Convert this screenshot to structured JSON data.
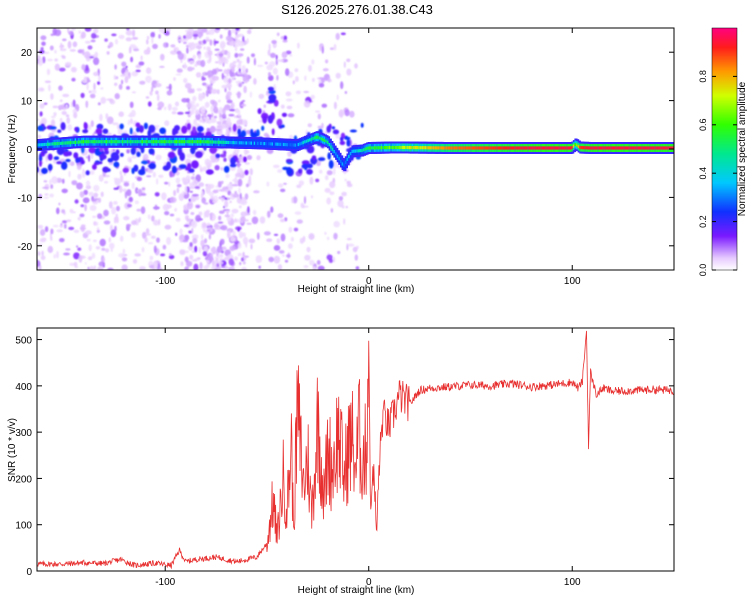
{
  "title": "S126.2025.276.01.38.C43",
  "chart_data": [
    {
      "type": "heatmap",
      "name": "spectrogram",
      "xlabel": "Height of straight line (km)",
      "ylabel": "Frequency (Hz)",
      "xlim": [
        -163,
        150
      ],
      "ylim": [
        -25,
        25
      ],
      "xticks": [
        -100,
        0,
        100
      ],
      "yticks": [
        -20,
        -10,
        0,
        10,
        20
      ],
      "colorbar": {
        "label": "Normalized spectral amplitude",
        "range": [
          0,
          1
        ],
        "ticks": [
          0.0,
          0.2,
          0.4,
          0.6,
          0.8
        ]
      },
      "dominant_frequency_track": {
        "x": [
          -163,
          -140,
          -120,
          -100,
          -80,
          -65,
          -55,
          -45,
          -35,
          -25,
          -20,
          -15,
          -12,
          -8,
          -3,
          0,
          10,
          20,
          40,
          60,
          80,
          100,
          102,
          104,
          110,
          130,
          150
        ],
        "y": [
          0.8,
          1.5,
          1.5,
          1.5,
          1.5,
          1.3,
          1.2,
          1.0,
          0.8,
          2.5,
          1.5,
          -1.5,
          -3.5,
          -0.5,
          -0.3,
          0.2,
          0.3,
          0.3,
          0.2,
          0.2,
          0.2,
          0.2,
          1.0,
          0.3,
          0.2,
          0.2,
          0.2
        ],
        "normalized_amplitude": [
          0.4,
          0.55,
          0.5,
          0.55,
          0.55,
          0.35,
          0.3,
          0.3,
          0.3,
          0.5,
          0.5,
          0.3,
          0.3,
          0.35,
          0.45,
          0.55,
          0.6,
          0.7,
          0.85,
          0.9,
          0.95,
          0.95,
          0.55,
          0.9,
          0.95,
          0.95,
          0.95
        ]
      }
    },
    {
      "type": "line",
      "name": "snr",
      "xlabel": "Height of straight line (km)",
      "ylabel": "SNR (10 * v/v)",
      "xlim": [
        -163,
        150
      ],
      "ylim": [
        0,
        525
      ],
      "xticks": [
        -100,
        0,
        100
      ],
      "yticks": [
        0,
        100,
        200,
        300,
        400,
        500
      ],
      "color": "#e83030",
      "series": [
        {
          "name": "SNR",
          "x": [
            -163,
            -150,
            -140,
            -130,
            -122,
            -115,
            -105,
            -97,
            -93,
            -90,
            -85,
            -75,
            -65,
            -55,
            -50,
            -47,
            -45,
            -42,
            -40,
            -38,
            -37,
            -35,
            -32,
            -30,
            -28,
            -25,
            -22,
            -20,
            -18,
            -15,
            -12,
            -10,
            -8,
            -6,
            -5,
            -4,
            -2,
            -1,
            0,
            1,
            2,
            4,
            5,
            7,
            10,
            13,
            15,
            20,
            25,
            30,
            40,
            50,
            60,
            70,
            80,
            90,
            100,
            103,
            105,
            107,
            108,
            109,
            110,
            112,
            115,
            120,
            130,
            140,
            150
          ],
          "y": [
            15,
            15,
            18,
            16,
            25,
            12,
            17,
            12,
            45,
            20,
            25,
            30,
            20,
            30,
            60,
            150,
            70,
            200,
            140,
            280,
            90,
            350,
            180,
            250,
            120,
            330,
            160,
            260,
            220,
            300,
            200,
            270,
            280,
            220,
            320,
            260,
            240,
            290,
            510,
            100,
            240,
            80,
            220,
            340,
            310,
            350,
            380,
            360,
            390,
            395,
            398,
            402,
            400,
            405,
            398,
            402,
            408,
            395,
            410,
            520,
            270,
            430,
            410,
            380,
            395,
            388,
            390,
            392,
            390
          ]
        }
      ]
    }
  ]
}
